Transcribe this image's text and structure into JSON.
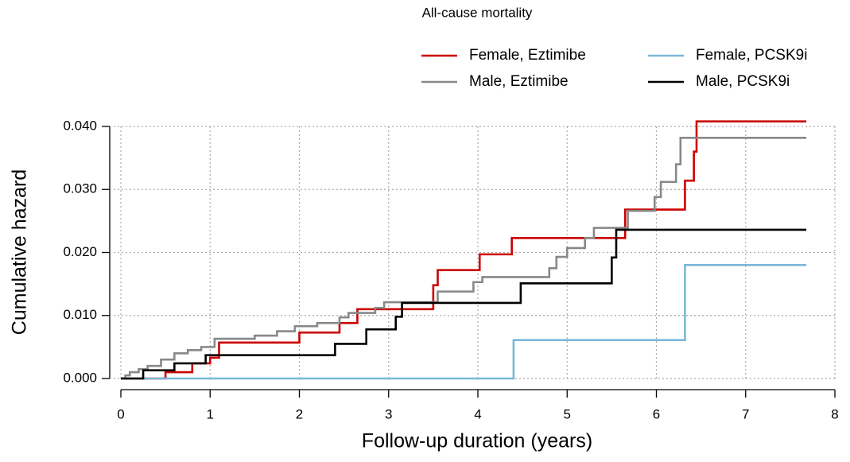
{
  "chart_data": {
    "type": "step",
    "title": "All-cause mortality",
    "xlabel": "Follow-up duration (years)",
    "ylabel": "Cumulative hazard",
    "xlim": [
      0,
      8
    ],
    "xticks": [
      0,
      1,
      2,
      3,
      4,
      5,
      6,
      7,
      8
    ],
    "ylim": [
      0,
      0.04
    ],
    "yticks": [
      {
        "value": 0,
        "label": "0.000"
      },
      {
        "value": 0.01,
        "label": "0.010"
      },
      {
        "value": 0.02,
        "label": "0.020"
      },
      {
        "value": 0.03,
        "label": "0.030"
      },
      {
        "value": 0.04,
        "label": "0.040"
      }
    ],
    "grid": true,
    "legend": "top-right",
    "legend_ncol": 2,
    "series": [
      {
        "name": "Female, Eztimibe",
        "color": "#cc0000",
        "x": [
          0,
          0.5,
          0.8,
          1.0,
          1.1,
          2.0,
          2.45,
          2.65,
          3.5,
          3.55,
          4.02,
          4.38,
          5.65,
          6.32,
          6.42,
          6.45,
          7.68
        ],
        "values": [
          0,
          0.001,
          0.0024,
          0.0033,
          0.0057,
          0.0073,
          0.0088,
          0.011,
          0.0148,
          0.0172,
          0.0197,
          0.0223,
          0.0268,
          0.0314,
          0.036,
          0.0408,
          0.0408
        ]
      },
      {
        "name": "Female, PCSK9i",
        "color": "#7ab8d9",
        "x": [
          0,
          4.4,
          6.32,
          7.68
        ],
        "values": [
          0,
          0.0061,
          0.018,
          0.018
        ]
      },
      {
        "name": "Male, Eztimibe",
        "color": "#888888",
        "x": [
          0,
          0.05,
          0.1,
          0.2,
          0.3,
          0.45,
          0.6,
          0.75,
          0.9,
          1.05,
          1.5,
          1.75,
          1.95,
          2.2,
          2.45,
          2.55,
          2.85,
          2.95,
          3.55,
          3.95,
          4.05,
          4.8,
          4.88,
          5.0,
          5.2,
          5.3,
          5.68,
          5.98,
          6.05,
          6.22,
          6.27,
          7.68
        ],
        "values": [
          0,
          0.0005,
          0.001,
          0.0015,
          0.002,
          0.003,
          0.004,
          0.0045,
          0.005,
          0.0063,
          0.0068,
          0.0075,
          0.0083,
          0.0088,
          0.0097,
          0.0104,
          0.0112,
          0.0121,
          0.0138,
          0.0153,
          0.0161,
          0.0175,
          0.0193,
          0.0207,
          0.0223,
          0.0239,
          0.0266,
          0.0288,
          0.0312,
          0.034,
          0.0382,
          0.0382
        ]
      },
      {
        "name": "Male, PCSK9i",
        "color": "#000000",
        "x": [
          0,
          0.25,
          0.6,
          0.95,
          2.4,
          2.75,
          3.08,
          3.15,
          4.48,
          5.5,
          5.55,
          7.68
        ],
        "values": [
          0,
          0.0013,
          0.0024,
          0.0037,
          0.0055,
          0.0078,
          0.0098,
          0.012,
          0.0151,
          0.0192,
          0.0236,
          0.0236
        ]
      }
    ]
  }
}
